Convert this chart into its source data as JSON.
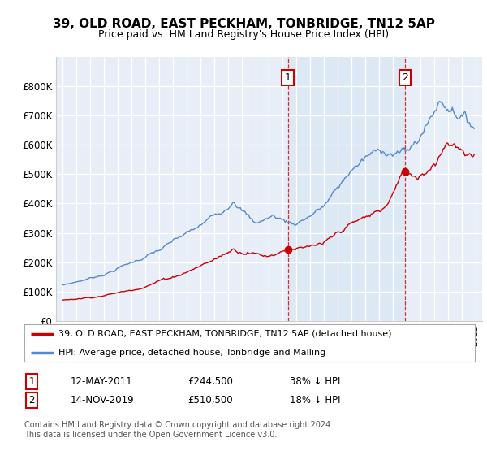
{
  "title": "39, OLD ROAD, EAST PECKHAM, TONBRIDGE, TN12 5AP",
  "subtitle": "Price paid vs. HM Land Registry's House Price Index (HPI)",
  "legend_line1": "39, OLD ROAD, EAST PECKHAM, TONBRIDGE, TN12 5AP (detached house)",
  "legend_line2": "HPI: Average price, detached house, Tonbridge and Malling",
  "footer": "Contains HM Land Registry data © Crown copyright and database right 2024.\nThis data is licensed under the Open Government Licence v3.0.",
  "sale1_date": "12-MAY-2011",
  "sale1_price": "£244,500",
  "sale1_hpi": "38% ↓ HPI",
  "sale1_x": 2011.36,
  "sale1_y": 244500,
  "sale2_date": "14-NOV-2019",
  "sale2_price": "£510,500",
  "sale2_hpi": "18% ↓ HPI",
  "sale2_x": 2019.87,
  "sale2_y": 510500,
  "hpi_color": "#5588cc",
  "sale_color": "#cc0000",
  "highlight_color": "#dde8f5",
  "ylim": [
    0,
    900000
  ],
  "yticks": [
    0,
    100000,
    200000,
    300000,
    400000,
    500000,
    600000,
    700000,
    800000
  ],
  "ytick_labels": [
    "£0",
    "£100K",
    "£200K",
    "£300K",
    "£400K",
    "£500K",
    "£600K",
    "£700K",
    "£800K"
  ],
  "xlim_start": 1994.5,
  "xlim_end": 2025.5,
  "background_color": "#e8eef8"
}
